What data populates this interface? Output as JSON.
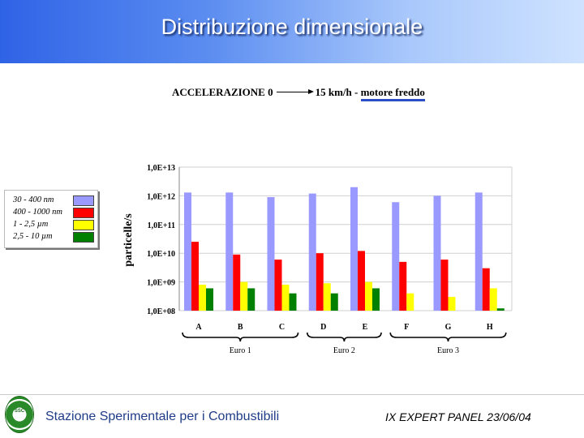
{
  "header": {
    "title": "Distribuzione dimensionale"
  },
  "chart_title": {
    "left": "ACCELERAZIONE  0",
    "right_plain": "15 km/h - ",
    "right_underlined": "motore freddo"
  },
  "footer": {
    "institution": "Stazione Sperimentale per i Combustibili",
    "event": "IX EXPERT PANEL 23/06/04"
  },
  "chart_data": {
    "type": "bar",
    "title": "ACCELERAZIONE 0 → 15 km/h - motore freddo",
    "ylabel": "particelle/s",
    "xlabel": "",
    "y_scale": "log",
    "ylim": [
      100000000.0,
      10000000000000.0
    ],
    "y_ticks": [
      {
        "value": 100000000.0,
        "label": "1,0E+08"
      },
      {
        "value": 1000000000.0,
        "label": "1,0E+09"
      },
      {
        "value": 10000000000.0,
        "label": "1,0E+10"
      },
      {
        "value": 100000000000.0,
        "label": "1,0E+11"
      },
      {
        "value": 1000000000000.0,
        "label": "1,0E+12"
      },
      {
        "value": 10000000000000.0,
        "label": "1,0E+13"
      }
    ],
    "grid": true,
    "legend_position": "left",
    "categories": [
      "A",
      "B",
      "C",
      "D",
      "E",
      "F",
      "G",
      "H"
    ],
    "series": [
      {
        "name": "30 - 400 nm",
        "color": "#9999ff",
        "values": [
          1300000000000.0,
          1300000000000.0,
          900000000000.0,
          1200000000000.0,
          2000000000000.0,
          600000000000.0,
          1000000000000.0,
          1300000000000.0
        ]
      },
      {
        "name": "400 - 1000 nm",
        "color": "#ff0000",
        "values": [
          25000000000.0,
          9000000000.0,
          6000000000.0,
          10000000000.0,
          12000000000.0,
          5000000000.0,
          6000000000.0,
          3000000000.0
        ]
      },
      {
        "name": "1 - 2,5  µm",
        "color": "#ffff00",
        "values": [
          800000000.0,
          1000000000.0,
          800000000.0,
          900000000.0,
          1000000000.0,
          400000000.0,
          300000000.0,
          600000000.0
        ]
      },
      {
        "name": "2,5 - 10  µm",
        "color": "#008000",
        "values": [
          600000000.0,
          600000000.0,
          400000000.0,
          400000000.0,
          600000000.0,
          100000000.0,
          100000000.0,
          120000000.0
        ]
      }
    ],
    "groups": [
      {
        "label": "Euro 1",
        "from": 0,
        "to": 2
      },
      {
        "label": "Euro 2",
        "from": 3,
        "to": 4
      },
      {
        "label": "Euro 3",
        "from": 5,
        "to": 7
      }
    ]
  }
}
